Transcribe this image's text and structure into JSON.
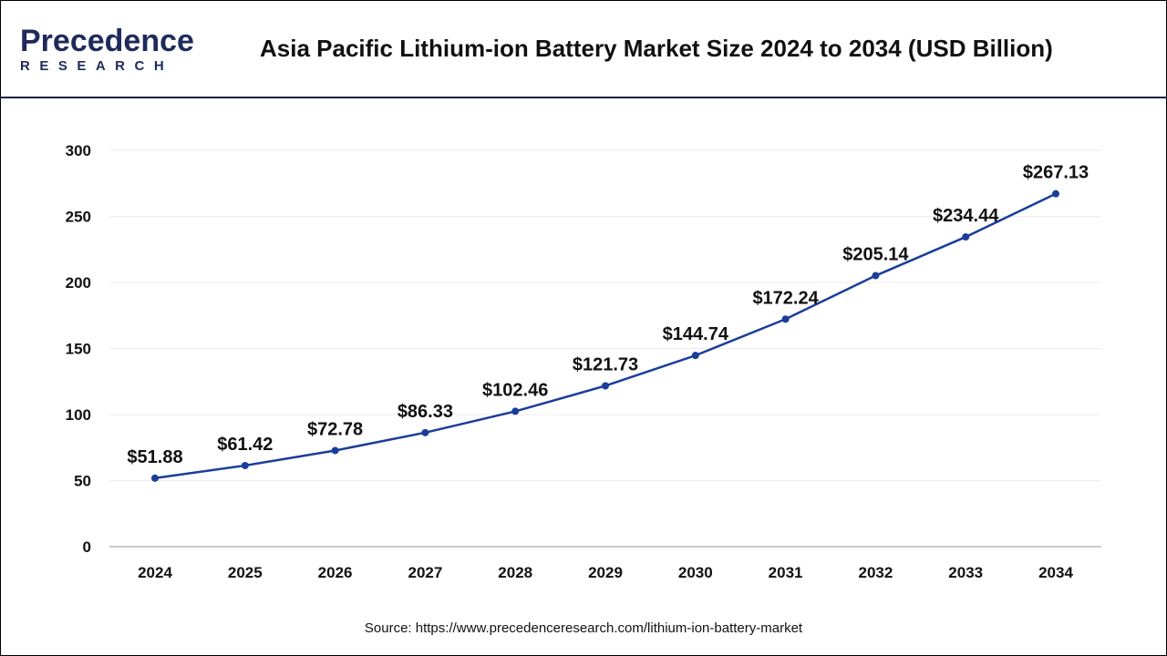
{
  "header": {
    "logo_text": "Precedence",
    "logo_subtext": "RESEARCH",
    "title": "Asia Pacific Lithium-ion Battery Market Size 2024 to 2034 (USD Billion)"
  },
  "chart_data": {
    "type": "line",
    "title": "Asia Pacific Lithium-ion Battery Market Size 2024 to 2034 (USD Billion)",
    "categories": [
      "2024",
      "2025",
      "2026",
      "2027",
      "2028",
      "2029",
      "2030",
      "2031",
      "2032",
      "2033",
      "2034"
    ],
    "values": [
      51.88,
      61.42,
      72.78,
      86.33,
      102.46,
      121.73,
      144.74,
      172.24,
      205.14,
      234.44,
      267.13
    ],
    "data_labels": [
      "$51.88",
      "$61.42",
      "$72.78",
      "$86.33",
      "$102.46",
      "$121.73",
      "$144.74",
      "$172.24",
      "$205.14",
      "$234.44",
      "$267.13"
    ],
    "y_ticks": [
      "0",
      "50",
      "100",
      "150",
      "200",
      "250",
      "300"
    ],
    "ylim": [
      0,
      300
    ],
    "grid": true,
    "line_color": "#1a3d9a"
  },
  "footer": {
    "source": "Source: https://www.precedenceresearch.com/lithium-ion-battery-market"
  }
}
